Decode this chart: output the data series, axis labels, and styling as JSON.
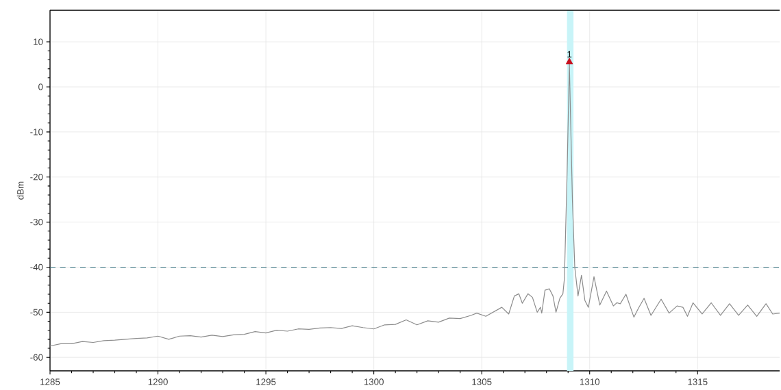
{
  "chart_data": {
    "type": "line",
    "ylabel": "dBm",
    "xlim": [
      1285,
      1318.8
    ],
    "ylim": [
      -63,
      17
    ],
    "xticks": [
      1285,
      1290,
      1295,
      1300,
      1305,
      1310,
      1315
    ],
    "yticks": [
      -60,
      -50,
      -40,
      -30,
      -20,
      -10,
      0,
      10
    ],
    "grid": true,
    "marker": "none",
    "line_style": "solid",
    "ref_lines": [
      {
        "axis": "y",
        "value": -40,
        "color": "#2e6b7a",
        "line_style": "dashed"
      }
    ],
    "bands": [
      {
        "axis": "x",
        "from": 1308.95,
        "to": 1309.25,
        "color": "#c8f4f8"
      }
    ],
    "annotations": [
      {
        "text": "1",
        "x": 1309.06,
        "y": 5.5
      }
    ],
    "series": [
      {
        "type": "scatter",
        "marker": "triangle",
        "color": "#c8101e",
        "x": [
          1309.06
        ],
        "values": [
          5.5
        ]
      },
      {
        "color": "#8c8c8c",
        "x": [
          1285,
          1285.5,
          1286,
          1286.5,
          1287,
          1287.5,
          1288,
          1288.5,
          1289,
          1289.5,
          1290,
          1290.5,
          1291,
          1291.5,
          1292,
          1292.5,
          1293,
          1293.5,
          1294,
          1294.5,
          1295,
          1295.5,
          1296,
          1296.5,
          1297,
          1297.5,
          1298,
          1298.5,
          1299,
          1299.5,
          1300,
          1300.5,
          1301,
          1301.5,
          1302,
          1302.5,
          1303,
          1303.5,
          1304,
          1304.5,
          1304.77,
          1305.19,
          1305.93,
          1306.25,
          1306.51,
          1306.72,
          1306.88,
          1307.14,
          1307.35,
          1307.57,
          1307.72,
          1307.78,
          1307.93,
          1308.13,
          1308.3,
          1308.44,
          1308.62,
          1308.76,
          1308.83,
          1308.95,
          1309.06,
          1309.2,
          1309.31,
          1309.46,
          1309.62,
          1309.78,
          1309.94,
          1310.2,
          1310.47,
          1310.78,
          1311.1,
          1311.26,
          1311.42,
          1311.68,
          1312.05,
          1312.26,
          1312.52,
          1312.84,
          1313.31,
          1313.68,
          1314.05,
          1314.32,
          1314.53,
          1314.79,
          1315.21,
          1315.63,
          1316.06,
          1316.48,
          1316.9,
          1317.32,
          1317.74,
          1318.17,
          1318.48,
          1318.8
        ],
        "values": [
          -57.5,
          -57,
          -57,
          -56.5,
          -56.7,
          -56.3,
          -56.2,
          -56,
          -55.8,
          -55.7,
          -55.3,
          -56,
          -55.3,
          -55.2,
          -55.5,
          -55.1,
          -55.4,
          -55,
          -54.9,
          -54.3,
          -54.6,
          -54,
          -54.2,
          -53.7,
          -53.8,
          -53.5,
          -53.4,
          -53.6,
          -53,
          -53.4,
          -53.7,
          -52.8,
          -52.7,
          -51.7,
          -52.8,
          -51.9,
          -52.2,
          -51.3,
          -51.4,
          -50.7,
          -50.2,
          -50.9,
          -48.9,
          -50.4,
          -46.4,
          -45.9,
          -48,
          -45.9,
          -46.7,
          -50,
          -48.9,
          -50.2,
          -45.1,
          -44.8,
          -46.4,
          -50,
          -46.9,
          -45.9,
          -42.5,
          -20,
          5,
          -25,
          -40,
          -46.4,
          -41.8,
          -47.4,
          -48.9,
          -42.1,
          -48.4,
          -45.3,
          -48.6,
          -47.9,
          -48.1,
          -46,
          -51.1,
          -49.1,
          -46.9,
          -50.7,
          -47.1,
          -50.2,
          -48.6,
          -48.9,
          -50.9,
          -47.9,
          -50.4,
          -47.9,
          -50.7,
          -48.1,
          -50.7,
          -48.4,
          -50.9,
          -48.1,
          -50.4,
          -50.2
        ]
      }
    ]
  }
}
